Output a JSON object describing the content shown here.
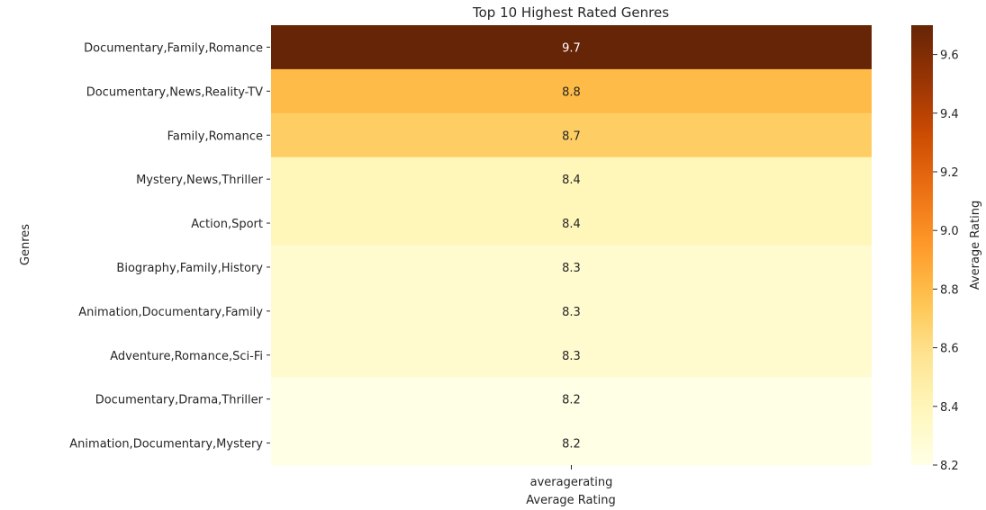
{
  "chart_data": {
    "type": "heatmap",
    "title": "Top 10 Highest Rated Genres",
    "xlabel": "Average Rating",
    "ylabel": "Genres",
    "columns": [
      "averagerating"
    ],
    "rows": [
      "Documentary,Family,Romance",
      "Documentary,News,Reality-TV",
      "Family,Romance",
      "Mystery,News,Thriller",
      "Action,Sport",
      "Biography,Family,History",
      "Animation,Documentary,Family",
      "Adventure,Romance,Sci-Fi",
      "Documentary,Drama,Thriller",
      "Animation,Documentary,Mystery"
    ],
    "values": [
      9.7,
      8.8,
      8.7,
      8.4,
      8.4,
      8.3,
      8.3,
      8.3,
      8.2,
      8.2
    ],
    "value_labels": [
      "9.7",
      "8.8",
      "8.7",
      "8.4",
      "8.4",
      "8.3",
      "8.3",
      "8.3",
      "8.2",
      "8.2"
    ],
    "colormap": "YlOrBr",
    "colorbar": {
      "label": "Average Rating",
      "range": [
        8.2,
        9.7
      ],
      "ticks": [
        8.2,
        8.4,
        8.6,
        8.8,
        9.0,
        9.2,
        9.4,
        9.6
      ],
      "tick_labels": [
        "8.2",
        "8.4",
        "8.6",
        "8.8",
        "9.0",
        "9.2",
        "9.4",
        "9.6"
      ]
    },
    "grid": false
  }
}
